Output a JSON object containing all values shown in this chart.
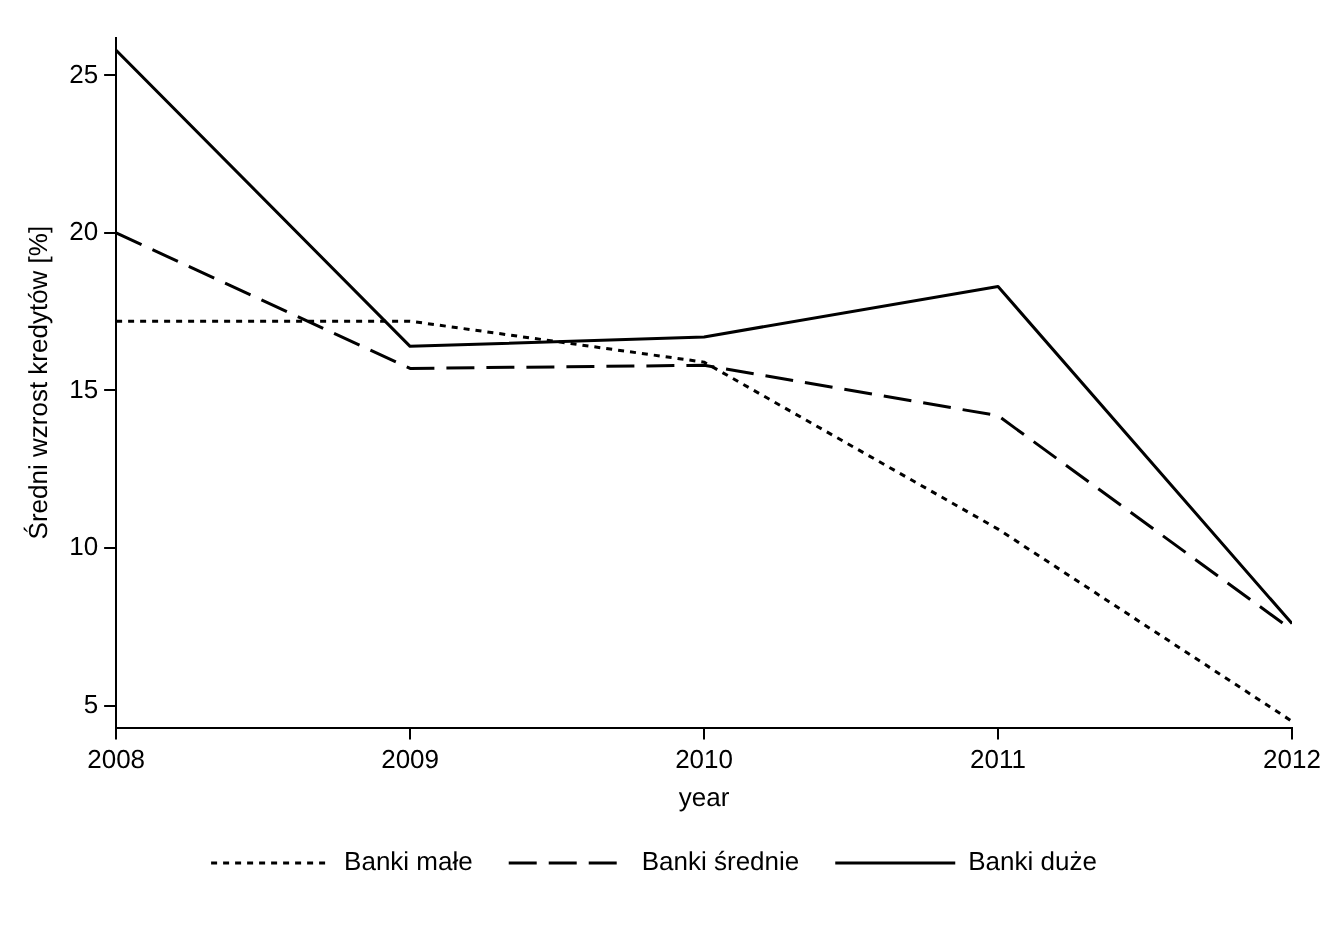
{
  "chart_data": {
    "type": "line",
    "xlabel": "year",
    "ylabel": "Średni wzrost kredytów [%]",
    "x": [
      2008,
      2009,
      2010,
      2011,
      2012
    ],
    "xlim": [
      2008,
      2012
    ],
    "xticks": [
      2008,
      2009,
      2010,
      2011,
      2012
    ],
    "ylim": [
      4.3,
      26.2
    ],
    "yticks": [
      5,
      10,
      15,
      20,
      25
    ],
    "grid": false,
    "legend": "bottom",
    "marker": "none",
    "series": [
      {
        "name": "Banki małe",
        "color": "#000000",
        "line_style": "dotted",
        "values": [
          17.2,
          17.2,
          15.9,
          10.6,
          4.5
        ]
      },
      {
        "name": "Banki średnie",
        "color": "#000000",
        "line_style": "dashed",
        "values": [
          20.0,
          15.7,
          15.8,
          14.2,
          7.4
        ]
      },
      {
        "name": "Banki duże",
        "color": "#000000",
        "line_style": "solid",
        "values": [
          25.8,
          16.4,
          16.7,
          18.3,
          7.6
        ]
      }
    ]
  }
}
